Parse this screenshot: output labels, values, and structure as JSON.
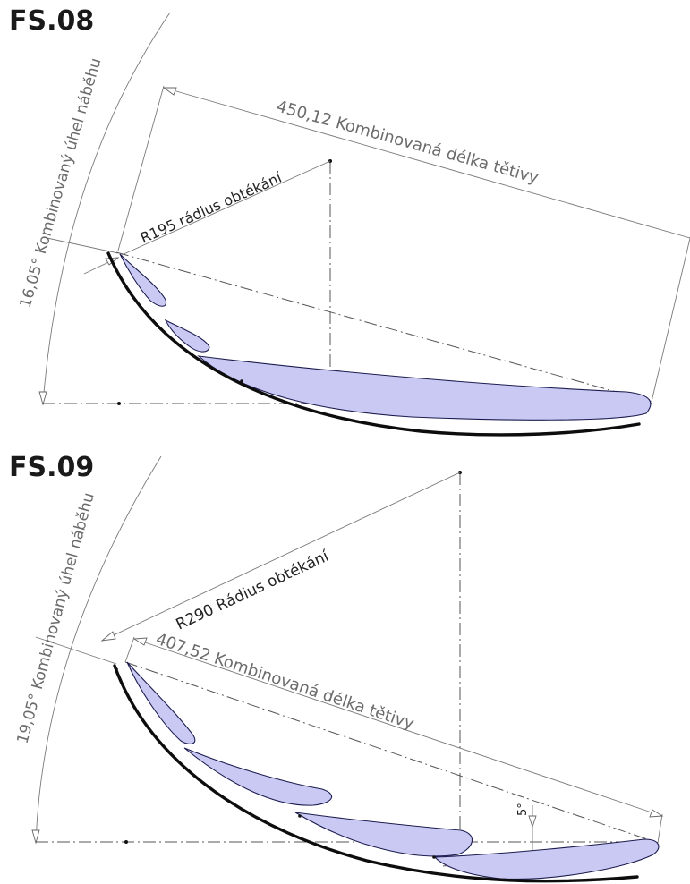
{
  "panels": [
    {
      "id": "FS.08",
      "title": "FS.08",
      "angle_label": "16,05° Kombinovaný úhel náběhu",
      "chord_label": "450,12 Kombinovaná délka tětivy",
      "radius_label": "R195 rádius obtékání"
    },
    {
      "id": "FS.09",
      "title": "FS.09",
      "angle_label": "19,05° Kombinovaný úhel náběhu",
      "chord_label": "407,52 Kombinovaná délka tětivy",
      "radius_label": "R290 Rádius obtékání",
      "small_angle_label": "5°"
    }
  ],
  "colors": {
    "flap_fill": "#c9c9f3",
    "flap_stroke": "#1c1c50",
    "line": "#7a7a7a",
    "text": "#222222"
  }
}
